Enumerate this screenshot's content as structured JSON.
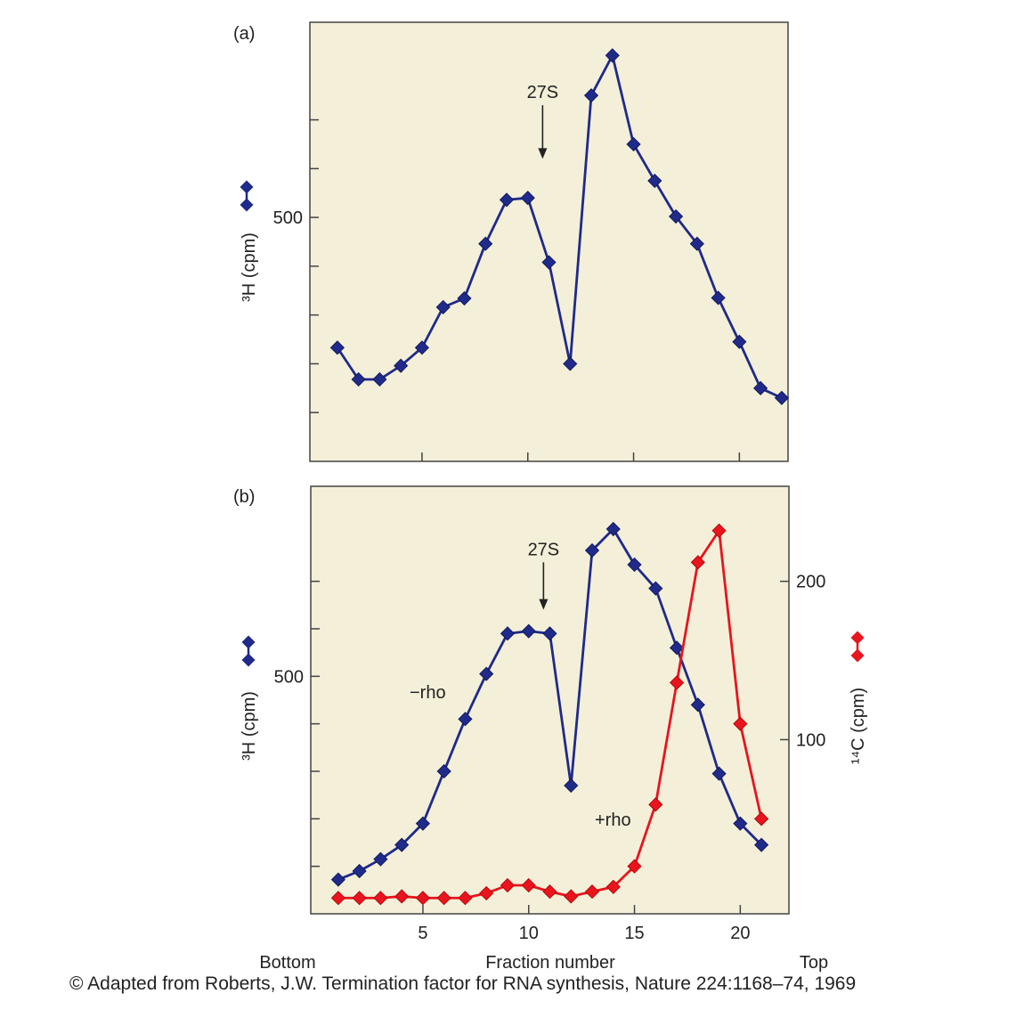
{
  "figure": {
    "credit": "© Adapted from Roberts, J.W. Termination factor for RNA synthesis, Nature 224:1168–74, 1969",
    "bottom_label": "Bottom",
    "top_label": "Top",
    "xlabel": "Fraction number",
    "x_ticks": [
      "5",
      "10",
      "15",
      "20"
    ]
  },
  "colors": {
    "panel_bg": "#f4efd8",
    "blue_series": "#1f2a8a",
    "red_series": "#e8141e"
  },
  "chart_data": [
    {
      "type": "line",
      "panel_label": "(a)",
      "xlabel": "Fraction number",
      "ylabel": "³H (cpm)",
      "xlim": [
        -0.3,
        22.3
      ],
      "ylim": [
        0,
        900
      ],
      "y_ticks": [
        100,
        200,
        300,
        400,
        500,
        600,
        700
      ],
      "y_tick_labels": [
        {
          "value": 500,
          "label": "500"
        }
      ],
      "legend_marker": "blue-diamond-pair",
      "annotation": {
        "text": "27S",
        "x": 10.7,
        "y": 730,
        "arrow_to_y": 620
      },
      "series": [
        {
          "color": "#1f2a8a",
          "x": [
            1,
            2,
            3,
            4,
            5,
            6,
            7,
            8,
            9,
            10,
            11,
            12,
            13,
            14,
            15,
            16,
            17,
            18,
            19,
            20,
            21,
            22
          ],
          "y": [
            233,
            168,
            168,
            196,
            233,
            316,
            334,
            446,
            536,
            540,
            408,
            200,
            750,
            832,
            650,
            575,
            502,
            446,
            335,
            245,
            150,
            130
          ]
        }
      ]
    },
    {
      "type": "line",
      "panel_label": "(b)",
      "xlabel": "Fraction number",
      "ylabel": "³H (cpm)",
      "ylabel_right": "¹⁴C (cpm)",
      "xlim": [
        -0.3,
        22.3
      ],
      "ylim": [
        0,
        900
      ],
      "ylim_right": [
        -10,
        260
      ],
      "y_ticks": [
        100,
        200,
        300,
        400,
        500,
        600,
        700
      ],
      "y_tick_labels": [
        {
          "value": 500,
          "label": "500"
        }
      ],
      "y_right_ticks": [
        100,
        200
      ],
      "y_right_tick_labels": [
        "100",
        "200"
      ],
      "legend_marker": "blue-diamond-pair",
      "legend_marker_right": "red-diamond-pair",
      "annotation": {
        "text": "27S",
        "x": 10.7,
        "y": 740,
        "arrow_to_y": 640
      },
      "series": [
        {
          "name": "−rho",
          "color": "#1f2a8a",
          "axis": "left",
          "x": [
            1,
            2,
            3,
            4,
            5,
            6,
            7,
            8,
            9,
            10,
            11,
            12,
            13,
            14,
            15,
            16,
            17,
            18,
            19,
            20,
            21
          ],
          "y": [
            72,
            90,
            115,
            145,
            190,
            300,
            410,
            505,
            590,
            595,
            590,
            270,
            765,
            810,
            735,
            685,
            560,
            440,
            295,
            190,
            145
          ]
        },
        {
          "name": "+rho",
          "color": "#e8141e",
          "axis": "right",
          "x": [
            1,
            2,
            3,
            4,
            5,
            6,
            7,
            8,
            9,
            10,
            11,
            12,
            13,
            14,
            15,
            16,
            17,
            18,
            19,
            20,
            21
          ],
          "y": [
            0,
            0,
            0,
            1,
            0,
            0,
            0,
            3,
            8,
            8,
            4,
            1,
            4,
            7,
            20,
            59,
            136,
            212,
            232,
            110,
            50
          ]
        }
      ]
    }
  ]
}
